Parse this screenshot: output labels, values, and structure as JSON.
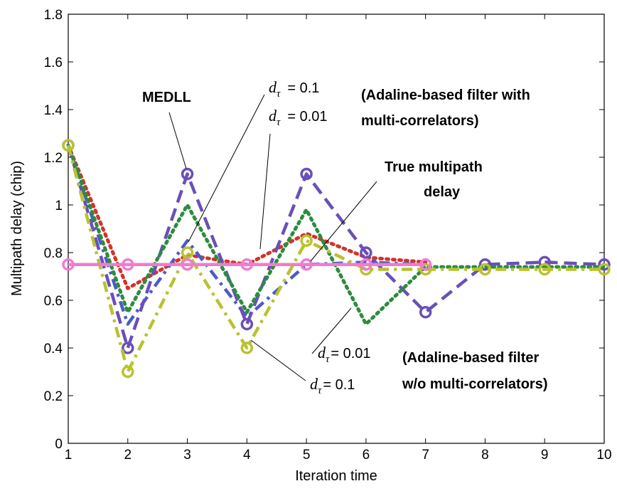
{
  "chart_data": {
    "type": "line",
    "xlabel": "Iteration time",
    "ylabel": "Multipath delay (chip)",
    "xlim": [
      1,
      10
    ],
    "ylim": [
      0,
      1.8
    ],
    "x_ticks": [
      1,
      2,
      3,
      4,
      5,
      6,
      7,
      8,
      9,
      10
    ],
    "y_ticks": [
      "0",
      "0.2",
      "0.4",
      "0.6",
      "0.8",
      "1",
      "1.2",
      "1.4",
      "1.6",
      "1.8"
    ],
    "grid": false,
    "series": [
      {
        "key": "adaline_multi_0_01",
        "color": "#d0342c",
        "dash": "dot",
        "markers": false,
        "x": [
          1,
          2,
          3,
          4,
          5,
          6,
          7
        ],
        "y": [
          1.25,
          0.65,
          0.79,
          0.75,
          0.88,
          0.78,
          0.76
        ]
      },
      {
        "key": "adaline_multi_0_1",
        "color": "#4a5cc8",
        "dash": "dashdot",
        "markers": false,
        "x": [
          1,
          2,
          3,
          4,
          5,
          6,
          7
        ],
        "y": [
          1.25,
          0.5,
          0.85,
          0.53,
          0.75,
          0.76,
          0.75
        ]
      },
      {
        "key": "medll",
        "color": "#6a4fb8",
        "dash": "dash",
        "markers": true,
        "x": [
          1,
          2,
          3,
          4,
          5,
          6,
          7,
          8,
          9,
          10
        ],
        "y": [
          1.25,
          0.4,
          1.13,
          0.5,
          1.13,
          0.8,
          0.55,
          0.75,
          0.76,
          0.75
        ]
      },
      {
        "key": "adaline_wo_0_01",
        "color": "#2e8b3e",
        "dash": "dot",
        "markers": false,
        "x": [
          1,
          2,
          3,
          4,
          5,
          6,
          7,
          8,
          9,
          10
        ],
        "y": [
          1.25,
          0.55,
          1.0,
          0.55,
          0.98,
          0.5,
          0.74,
          0.74,
          0.74,
          0.74
        ]
      },
      {
        "key": "adaline_wo_0_1",
        "color": "#b9c22e",
        "dash": "dashdot",
        "markers": true,
        "x": [
          1,
          2,
          3,
          4,
          5,
          6,
          7,
          8,
          9,
          10
        ],
        "y": [
          1.25,
          0.3,
          0.8,
          0.4,
          0.85,
          0.73,
          0.73,
          0.73,
          0.73,
          0.73
        ]
      },
      {
        "key": "true_delay",
        "color": "#f07ccf",
        "dash": "solid",
        "markers": true,
        "x": [
          1,
          2,
          3,
          4,
          5,
          6,
          7
        ],
        "y": [
          0.75,
          0.75,
          0.75,
          0.75,
          0.75,
          0.75,
          0.75
        ]
      }
    ],
    "annotations": {
      "medll": "MEDLL",
      "true_delay_line1": "True multipath",
      "true_delay_line2": "delay",
      "group_multi_line1": "(Adaline-based filter with",
      "group_multi_line2": "multi-correlators)",
      "group_wo_line1": "(Adaline-based filter",
      "group_wo_line2": "w/o multi-correlators)",
      "d_symbol": "d",
      "tau_symbol": "τ",
      "val_0_1": "= 0.1",
      "val_0_01": "= 0.01"
    }
  }
}
